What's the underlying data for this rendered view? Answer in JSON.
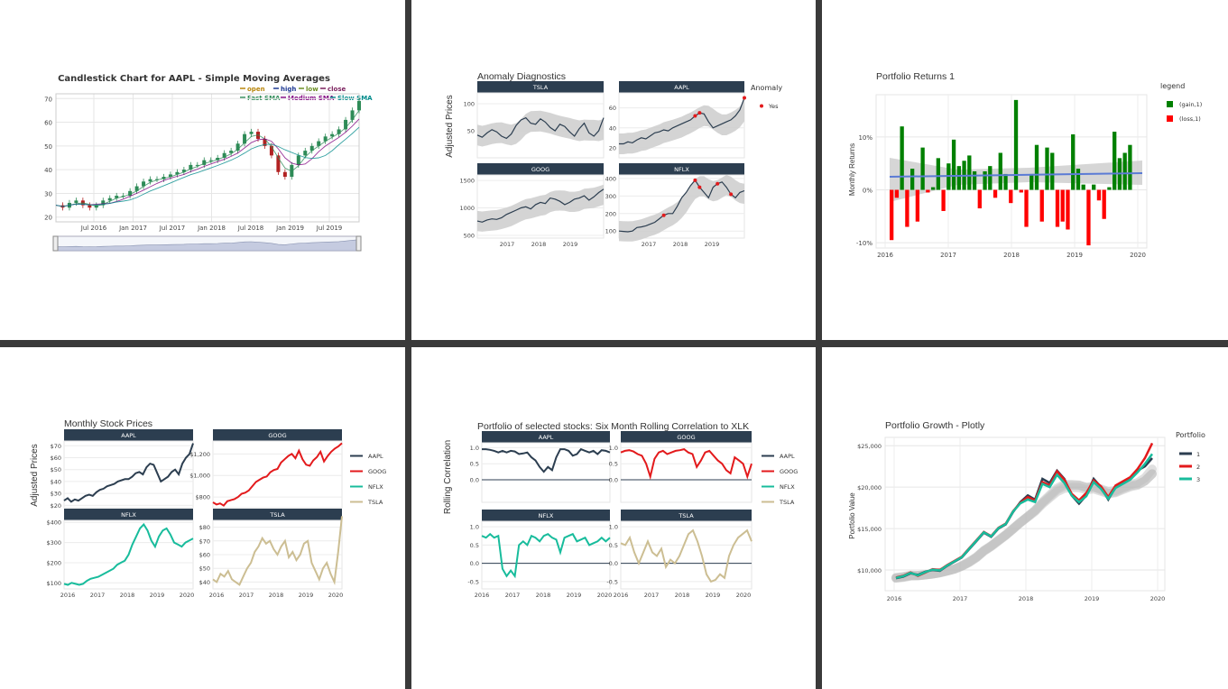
{
  "chart_data": [
    {
      "id": "p1",
      "type": "candlestick",
      "title": "Candlestick Chart for AAPL - Simple Moving Averages",
      "legend": [
        "open",
        "high",
        "low",
        "close",
        "Fast SMA",
        "Medium SMA",
        "Slow SMA"
      ],
      "legend_colors": {
        "open": "#b8860b",
        "high": "#1f3a93",
        "low": "#6b8e23",
        "close": "#7a1f5c",
        "Fast SMA": "#2e8b57",
        "Medium SMA": "#800080",
        "Slow SMA": "#008b8b"
      },
      "x_ticks": [
        "Jul 2016",
        "Jan 2017",
        "Jul 2017",
        "Jan 2018",
        "Jul 2018",
        "Jan 2019",
        "Jul 2019"
      ],
      "y_ticks": [
        "20",
        "30",
        "40",
        "50",
        "60",
        "70"
      ],
      "ylim": [
        18,
        72
      ],
      "close": [
        25,
        24,
        26,
        27,
        25,
        24,
        25,
        27,
        28,
        29,
        29,
        31,
        33,
        35,
        36,
        36,
        37,
        38,
        39,
        40,
        42,
        42,
        44,
        44,
        45,
        47,
        48,
        51,
        55,
        56,
        53,
        50,
        46,
        39,
        37,
        42,
        46,
        48,
        50,
        52,
        54,
        55,
        57,
        61,
        65,
        69
      ]
    },
    {
      "id": "p2",
      "type": "line-facets",
      "title": "Anomaly Diagnostics",
      "ylabel": "Adjusted Prices",
      "legend_title": "Anomaly",
      "legend": [
        "Yes"
      ],
      "x_ticks": [
        "2017",
        "2018",
        "2019"
      ],
      "facets": [
        {
          "name": "TSLA",
          "y_ticks": [
            "50",
            "100"
          ],
          "ylim": [
            0,
            120
          ],
          "values": [
            42,
            38,
            46,
            52,
            48,
            40,
            36,
            44,
            60,
            70,
            74,
            64,
            62,
            72,
            66,
            56,
            50,
            62,
            58,
            48,
            40,
            54,
            64,
            46,
            40,
            50,
            74
          ]
        },
        {
          "name": "AAPL",
          "y_ticks": [
            "20",
            "40",
            "60"
          ],
          "ylim": [
            10,
            75
          ],
          "values": [
            24,
            24,
            26,
            25,
            28,
            30,
            29,
            32,
            35,
            36,
            38,
            37,
            40,
            42,
            44,
            46,
            48,
            52,
            55,
            54,
            46,
            40,
            42,
            44,
            46,
            48,
            52,
            58,
            70
          ]
        },
        {
          "name": "GOOG",
          "y_ticks": [
            "500",
            "1000",
            "1500"
          ],
          "ylim": [
            450,
            1600
          ],
          "values": [
            760,
            740,
            780,
            800,
            790,
            820,
            880,
            920,
            960,
            1000,
            1020,
            980,
            1060,
            1100,
            1080,
            1180,
            1160,
            1120,
            1060,
            1100,
            1160,
            1180,
            1220,
            1140,
            1200,
            1280,
            1340
          ]
        },
        {
          "name": "NFLX",
          "y_ticks": [
            "100",
            "200",
            "300",
            "400"
          ],
          "ylim": [
            60,
            420
          ],
          "values": [
            100,
            98,
            96,
            100,
            120,
            124,
            130,
            140,
            150,
            170,
            190,
            200,
            200,
            240,
            290,
            320,
            360,
            390,
            350,
            320,
            290,
            350,
            370,
            380,
            350,
            310,
            290,
            320,
            330
          ]
        }
      ]
    },
    {
      "id": "p3",
      "type": "bar",
      "title": "Portfolio Returns 1",
      "ylabel": "Monthly Returns",
      "legend_title": "legend",
      "legend": [
        "(gain,1)",
        "(loss,1)"
      ],
      "legend_colors": {
        "(gain,1)": "#008000",
        "(loss,1)": "#ff0000"
      },
      "x_ticks": [
        "2016",
        "2017",
        "2018",
        "2019",
        "2020"
      ],
      "y_ticks": [
        "-10%",
        "0%",
        "10%"
      ],
      "ylim": [
        -11,
        18
      ],
      "values": [
        -9.5,
        -1.5,
        12,
        -7,
        4,
        -6,
        8,
        -0.5,
        0.5,
        6,
        -4,
        5,
        9.5,
        4.5,
        5.5,
        6.5,
        3.5,
        -3.5,
        3.5,
        4.5,
        -1.5,
        7,
        3,
        -2.5,
        17,
        -0.5,
        -7,
        3,
        8.5,
        -6,
        8,
        7,
        -7,
        -6,
        -7.5,
        10.5,
        4,
        1,
        -10.5,
        1,
        -2,
        -5.5,
        0.5,
        11,
        6,
        7,
        8.5
      ]
    },
    {
      "id": "p4",
      "type": "line-facets",
      "title": "Monthly Stock Prices",
      "ylabel": "Adjusted Prices",
      "legend": [
        "AAPL",
        "GOOG",
        "NFLX",
        "TSLA"
      ],
      "legend_colors": {
        "AAPL": "#2c3e50",
        "GOOG": "#e31a1c",
        "NFLX": "#18bc9c",
        "TSLA": "#ccbe93"
      },
      "x_ticks": [
        "2016",
        "2017",
        "2018",
        "2019",
        "2020"
      ],
      "facets": [
        {
          "name": "AAPL",
          "y_ticks": [
            "$20",
            "$30",
            "$40",
            "$50",
            "$60",
            "$70"
          ],
          "ylim": [
            18,
            74
          ],
          "values": [
            24,
            26,
            23,
            25,
            24,
            26,
            28,
            29,
            28,
            31,
            33,
            34,
            36,
            37,
            38,
            40,
            41,
            42,
            42,
            44,
            47,
            48,
            46,
            52,
            55,
            54,
            47,
            40,
            42,
            44,
            48,
            50,
            46,
            55,
            60,
            63,
            72
          ]
        },
        {
          "name": "GOOG",
          "y_ticks": [
            "$800",
            "$1,000",
            "$1,200"
          ],
          "ylim": [
            700,
            1320
          ],
          "values": [
            750,
            730,
            740,
            720,
            760,
            770,
            780,
            800,
            830,
            840,
            860,
            900,
            940,
            960,
            980,
            990,
            1030,
            1050,
            1060,
            1120,
            1150,
            1180,
            1200,
            1160,
            1230,
            1150,
            1100,
            1090,
            1140,
            1170,
            1220,
            1130,
            1180,
            1220,
            1250,
            1270,
            1300
          ]
        },
        {
          "name": "NFLX",
          "y_ticks": [
            "$100",
            "$200",
            "$300",
            "$400"
          ],
          "ylim": [
            70,
            410
          ],
          "values": [
            95,
            90,
            100,
            95,
            90,
            95,
            110,
            120,
            125,
            130,
            140,
            150,
            160,
            170,
            190,
            200,
            210,
            240,
            290,
            330,
            370,
            390,
            360,
            310,
            280,
            330,
            360,
            370,
            340,
            300,
            290,
            280,
            300,
            310,
            320
          ]
        },
        {
          "name": "TSLA",
          "y_ticks": [
            "$40",
            "$50",
            "$60",
            "$70",
            "$80"
          ],
          "ylim": [
            35,
            85
          ],
          "values": [
            42,
            40,
            46,
            44,
            48,
            42,
            40,
            38,
            44,
            50,
            54,
            62,
            66,
            72,
            68,
            70,
            64,
            60,
            66,
            70,
            58,
            62,
            56,
            60,
            68,
            70,
            54,
            48,
            42,
            50,
            54,
            46,
            40,
            62,
            88
          ]
        }
      ]
    },
    {
      "id": "p5",
      "type": "line-facets",
      "title": "Portfolio of selected stocks: Six Month Rolling Correlation to XLK",
      "ylabel": "Rolling Correlation",
      "legend": [
        "AAPL",
        "GOOG",
        "NFLX",
        "TSLA"
      ],
      "legend_colors": {
        "AAPL": "#2c3e50",
        "GOOG": "#e31a1c",
        "NFLX": "#18bc9c",
        "TSLA": "#ccbe93"
      },
      "x_ticks": [
        "2016",
        "2017",
        "2018",
        "2019",
        "2020"
      ],
      "facets": [
        {
          "name": "AAPL",
          "y_ticks": [
            "0.0",
            "0.5",
            "1.0"
          ],
          "ylim": [
            -0.7,
            1.15
          ],
          "values": [
            0.95,
            0.95,
            0.93,
            0.9,
            0.85,
            0.9,
            0.85,
            0.9,
            0.88,
            0.8,
            0.82,
            0.85,
            0.7,
            0.6,
            0.4,
            0.25,
            0.4,
            0.3,
            0.7,
            0.95,
            0.95,
            0.9,
            0.75,
            0.8,
            0.95,
            0.9,
            0.85,
            0.9,
            0.8,
            0.92,
            0.9,
            0.85
          ]
        },
        {
          "name": "GOOG",
          "y_ticks": [
            "0.0",
            "0.5",
            "1.0"
          ],
          "ylim": [
            -0.7,
            1.15
          ],
          "values": [
            0.85,
            0.9,
            0.92,
            0.88,
            0.8,
            0.75,
            0.5,
            0.1,
            0.65,
            0.85,
            0.9,
            0.8,
            0.85,
            0.9,
            0.92,
            0.95,
            0.85,
            0.8,
            0.4,
            0.6,
            0.85,
            0.9,
            0.75,
            0.6,
            0.5,
            0.3,
            0.2,
            0.7,
            0.6,
            0.5,
            0.1,
            0.5
          ]
        },
        {
          "name": "NFLX",
          "y_ticks": [
            "-0.5",
            "0.0",
            "0.5",
            "1.0"
          ],
          "ylim": [
            -0.7,
            1.15
          ],
          "values": [
            0.75,
            0.7,
            0.8,
            0.7,
            0.75,
            -0.15,
            -0.35,
            -0.2,
            -0.35,
            0.5,
            0.6,
            0.5,
            0.75,
            0.7,
            0.6,
            0.75,
            0.8,
            0.7,
            0.65,
            0.3,
            0.7,
            0.75,
            0.8,
            0.6,
            0.65,
            0.7,
            0.5,
            0.55,
            0.6,
            0.7,
            0.6,
            0.7
          ]
        },
        {
          "name": "TSLA",
          "y_ticks": [
            "-0.5",
            "0.0",
            "0.5",
            "1.0"
          ],
          "ylim": [
            -0.7,
            1.15
          ],
          "values": [
            0.55,
            0.5,
            0.7,
            0.3,
            0.0,
            0.3,
            0.6,
            0.3,
            0.2,
            0.4,
            -0.1,
            0.1,
            0.0,
            0.2,
            0.5,
            0.8,
            0.9,
            0.6,
            0.2,
            -0.3,
            -0.5,
            -0.45,
            -0.3,
            -0.4,
            0.2,
            0.5,
            0.7,
            0.8,
            0.9,
            0.6
          ]
        }
      ]
    },
    {
      "id": "p6",
      "type": "line",
      "title": "Portfolio Growth - Plotly",
      "ylabel": "Portfolio Value",
      "legend_title": "Portfolio",
      "legend": [
        "1",
        "2",
        "3"
      ],
      "legend_colors": {
        "1": "#2c3e50",
        "2": "#e31a1c",
        "3": "#18bc9c"
      },
      "x_ticks": [
        "2016",
        "2017",
        "2018",
        "2019",
        "2020"
      ],
      "y_ticks": [
        "$10,000",
        "$15,000",
        "$20,000",
        "$25,000"
      ],
      "ylim": [
        7500,
        26000
      ],
      "series": [
        {
          "name": "1",
          "values": [
            9000,
            9200,
            9600,
            9400,
            9800,
            10000,
            9900,
            10500,
            11000,
            11500,
            12500,
            13500,
            14500,
            14000,
            15000,
            15500,
            17000,
            18200,
            19000,
            18500,
            21000,
            20500,
            22000,
            21000,
            19000,
            18000,
            19000,
            21000,
            20000,
            18500,
            20000,
            20500,
            21000,
            22000,
            22500,
            23500
          ]
        },
        {
          "name": "2",
          "values": [
            9100,
            9300,
            9700,
            9300,
            9700,
            10100,
            10000,
            10600,
            11100,
            11600,
            12600,
            13600,
            14600,
            14100,
            15100,
            15600,
            17100,
            18100,
            18800,
            18400,
            20600,
            20200,
            21900,
            20900,
            19200,
            18400,
            19300,
            20800,
            20100,
            18800,
            20200,
            20700,
            21200,
            22200,
            23500,
            25300
          ]
        },
        {
          "name": "3",
          "values": [
            9050,
            9250,
            9650,
            9350,
            9750,
            10050,
            9950,
            10550,
            11050,
            11550,
            12550,
            13550,
            14550,
            14050,
            15050,
            15550,
            17050,
            18050,
            18500,
            18200,
            20400,
            20000,
            21500,
            20500,
            19000,
            18200,
            18900,
            20600,
            19800,
            18600,
            19900,
            20400,
            20900,
            21800,
            22800,
            24000
          ]
        }
      ]
    }
  ]
}
